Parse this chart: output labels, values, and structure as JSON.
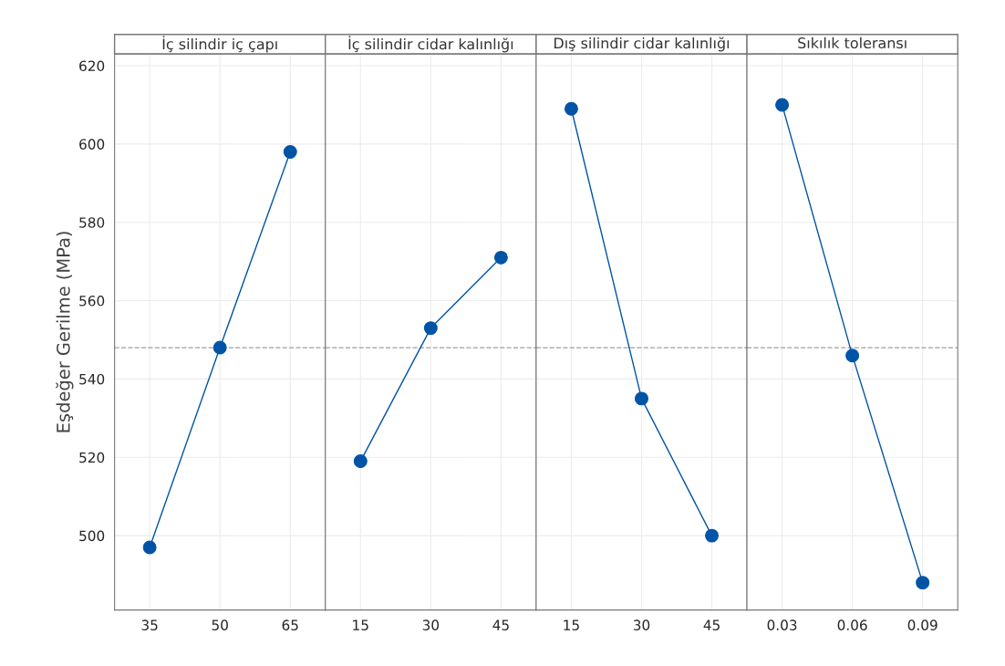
{
  "chart_data": [
    {
      "type": "line",
      "title": "İç silindir iç çapı",
      "ylabel": "Eşdeğer Gerilme (MPa)",
      "categories": [
        "35",
        "50",
        "65"
      ],
      "values": [
        497,
        548,
        598
      ],
      "color": "#0054a6",
      "marker": "circle",
      "line_style": "solid",
      "ylim": [
        481,
        623
      ],
      "yticks": [
        500,
        520,
        540,
        560,
        580,
        600,
        620
      ],
      "grid": true,
      "ref_lines": [
        {
          "axis": "y",
          "value": 548,
          "color": "#a0a0a0",
          "line_style": "dashed"
        }
      ]
    },
    {
      "type": "line",
      "title": "İç silindir cidar kalınlığı",
      "categories": [
        "15",
        "30",
        "45"
      ],
      "values": [
        519,
        553,
        571
      ],
      "color": "#0054a6",
      "marker": "circle",
      "line_style": "solid",
      "ylim": [
        481,
        623
      ],
      "yticks": [
        500,
        520,
        540,
        560,
        580,
        600,
        620
      ],
      "grid": true,
      "tick_labels": "x",
      "ref_lines": [
        {
          "axis": "y",
          "value": 548,
          "color": "#a0a0a0",
          "line_style": "dashed"
        }
      ]
    },
    {
      "type": "line",
      "title": "Dış silindir cidar kalınlığı",
      "categories": [
        "15",
        "30",
        "45"
      ],
      "values": [
        609,
        535,
        500
      ],
      "color": "#0054a6",
      "marker": "circle",
      "line_style": "solid",
      "ylim": [
        481,
        623
      ],
      "yticks": [
        500,
        520,
        540,
        560,
        580,
        600,
        620
      ],
      "grid": true,
      "tick_labels": "x",
      "ref_lines": [
        {
          "axis": "y",
          "value": 548,
          "color": "#a0a0a0",
          "line_style": "dashed"
        }
      ]
    },
    {
      "type": "line",
      "title": "Sıkılık toleransı",
      "categories": [
        "0.03",
        "0.06",
        "0.09"
      ],
      "values": [
        610,
        546,
        488
      ],
      "color": "#0054a6",
      "marker": "circle",
      "line_style": "solid",
      "ylim": [
        481,
        623
      ],
      "yticks": [
        500,
        520,
        540,
        560,
        580,
        600,
        620
      ],
      "grid": true,
      "tick_labels": "x",
      "ref_lines": [
        {
          "axis": "y",
          "value": 548,
          "color": "#a0a0a0",
          "line_style": "dashed"
        }
      ]
    }
  ]
}
